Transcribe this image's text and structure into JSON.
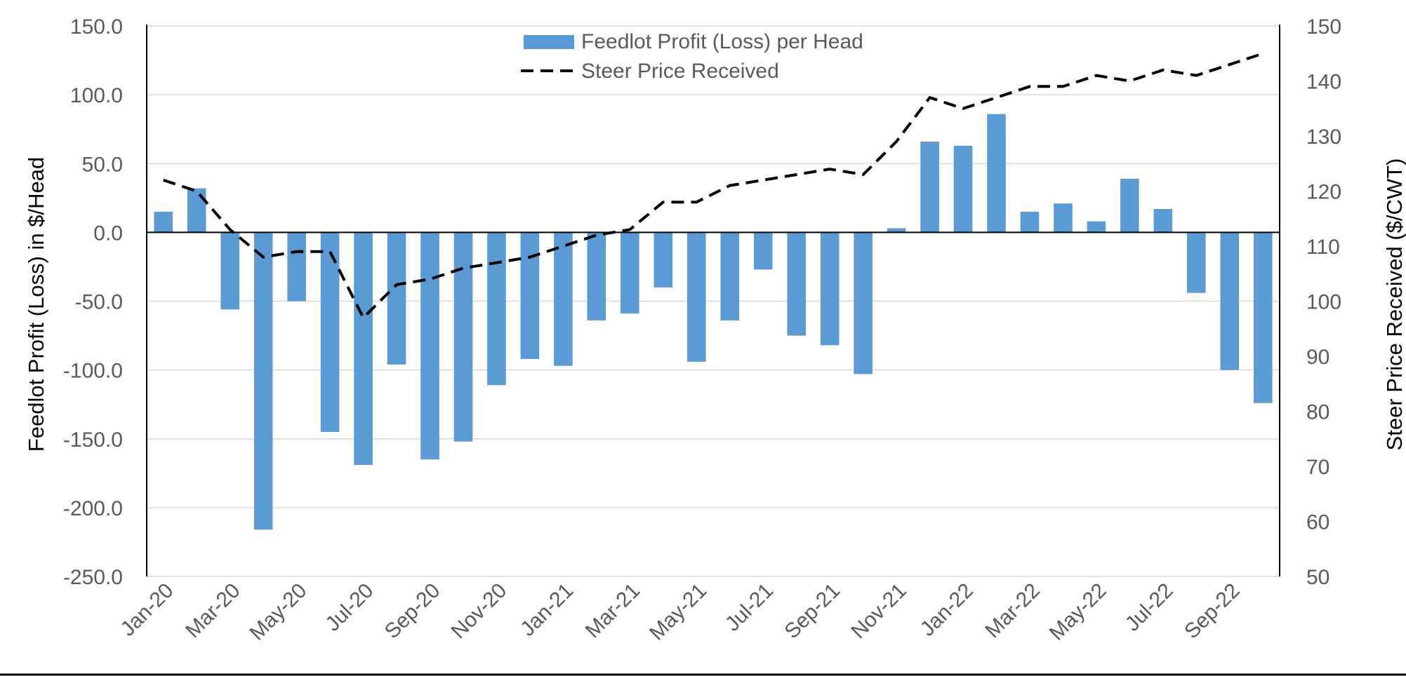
{
  "chart_data": {
    "type": "bar-line-combo",
    "categories": [
      "Jan-20",
      "Feb-20",
      "Mar-20",
      "Apr-20",
      "May-20",
      "Jun-20",
      "Jul-20",
      "Aug-20",
      "Sep-20",
      "Oct-20",
      "Nov-20",
      "Dec-20",
      "Jan-21",
      "Feb-21",
      "Mar-21",
      "Apr-21",
      "May-21",
      "Jun-21",
      "Jul-21",
      "Aug-21",
      "Sep-21",
      "Oct-21",
      "Nov-21",
      "Dec-21",
      "Jan-22",
      "Feb-22",
      "Mar-22",
      "Apr-22",
      "May-22",
      "Jun-22",
      "Jul-22",
      "Aug-22",
      "Sep-22",
      "Oct-22"
    ],
    "x_tick_labels": [
      "Jan-20",
      "Mar-20",
      "May-20",
      "Jul-20",
      "Sep-20",
      "Nov-20",
      "Jan-21",
      "Mar-21",
      "May-21",
      "Jul-21",
      "Sep-21",
      "Nov-21",
      "Jan-22",
      "Mar-22",
      "May-22",
      "Jul-22",
      "Sep-22"
    ],
    "series": [
      {
        "name": "Feedlot Profit (Loss) per Head",
        "type": "bar",
        "axis": "left",
        "color": "#5B9BD5",
        "values": [
          15,
          32,
          -56,
          -216,
          -50,
          -145,
          -169,
          -96,
          -165,
          -152,
          -111,
          -92,
          -97,
          -64,
          -59,
          -40,
          -94,
          -64,
          -27,
          -75,
          -82,
          -103,
          3,
          66,
          63,
          86,
          15,
          21,
          8,
          39,
          17,
          -44,
          -100,
          -124
        ]
      },
      {
        "name": "Steer Price Received",
        "type": "line",
        "axis": "right",
        "color": "#000000",
        "dash": "dashed",
        "values": [
          122,
          120,
          113,
          108,
          109,
          109,
          97,
          103,
          104,
          106,
          107,
          108,
          110,
          112,
          113,
          118,
          118,
          121,
          122,
          123,
          124,
          123,
          129,
          137,
          135,
          137,
          139,
          139,
          141,
          140,
          142,
          141,
          143,
          145
        ]
      }
    ],
    "left_axis": {
      "label": "Feedlot Profit (Loss) in $/Head",
      "min": -250,
      "max": 150,
      "ticks": [
        "150.0",
        "100.0",
        "50.0",
        "0.0",
        "-50.0",
        "-100.0",
        "-150.0",
        "-200.0",
        "-250.0"
      ]
    },
    "right_axis": {
      "label": "Steer Price Received ($/CWT)",
      "min": 50,
      "max": 150,
      "ticks": [
        "150",
        "140",
        "130",
        "120",
        "110",
        "100",
        "90",
        "80",
        "70",
        "60",
        "50"
      ]
    },
    "legend": {
      "position": "top-center",
      "entries": [
        "Feedlot Profit (Loss) per Head",
        "Steer Price Received"
      ]
    },
    "grid": true,
    "gridline_color": "#D9D9D9"
  }
}
